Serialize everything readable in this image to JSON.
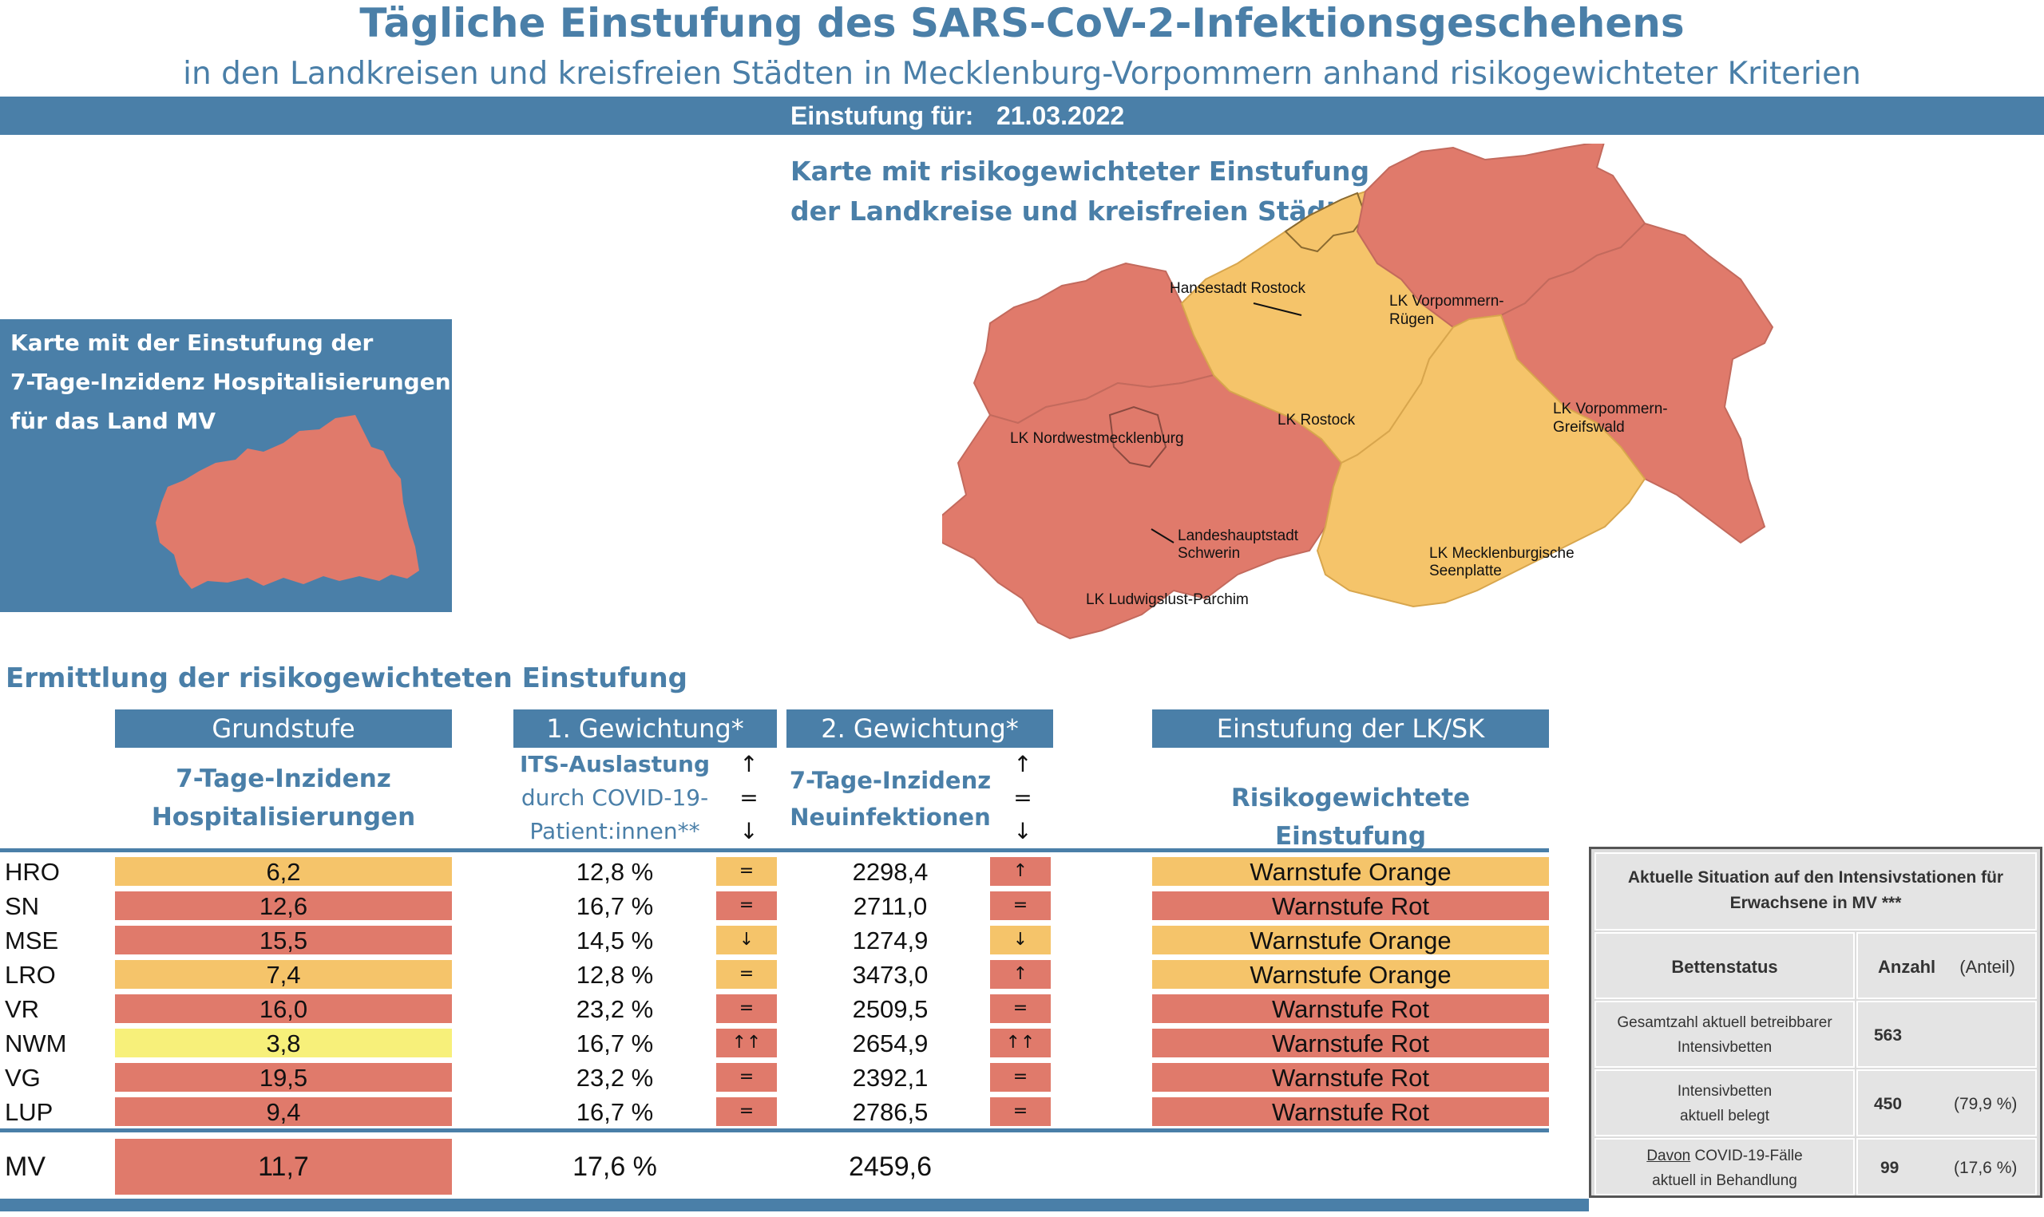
{
  "header": {
    "title": "Tägliche Einstufung des SARS-CoV-2-Infektionsgeschehens",
    "subtitle": "in den Landkreisen und kreisfreien Städten in Mecklenburg-Vorpommern anhand risikogewichteter Kriterien",
    "date_label": "Einstufung für:",
    "date": "21.03.2022"
  },
  "map": {
    "title_line1": "Karte mit risikogewichteter Einstufung",
    "title_line2": "der Landkreise und kreisfreien Städte",
    "labels": {
      "hro": "Hansestadt Rostock",
      "vr_1": "LK Vorpommern-",
      "vr_2": "Rügen",
      "lro": "LK Rostock",
      "vg_1": "LK Vorpommern-",
      "vg_2": "Greifswald",
      "nwm": "LK Nordwestmecklenburg",
      "sn_1": "Landeshauptstadt",
      "sn_2": "Schwerin",
      "mse_1": "LK Mecklenburgische",
      "mse_2": "Seenplatte",
      "lup": "LK Ludwigslust-Parchim"
    },
    "colors": {
      "red": "#e07a6b",
      "orange": "#f5c46a"
    },
    "regions": {
      "NWM": "red",
      "LUP": "red",
      "SN": "red",
      "HRO": "orange",
      "LRO": "orange",
      "MSE": "orange",
      "VR": "red",
      "VG": "red"
    }
  },
  "mv_box": {
    "line1": "Karte mit der Einstufung der",
    "line2": "7-Tage-Inzidenz Hospitalisierungen",
    "line3": "für das Land MV"
  },
  "section_title": "Ermittlung der risikogewichteten Einstufung",
  "table": {
    "headers": {
      "grundstufe": "Grundstufe",
      "gew1": "1. Gewichtung*",
      "gew2": "2. Gewichtung*",
      "einstufung": "Einstufung der LK/SK"
    },
    "sub": {
      "hosp_1": "7-Tage-Inzidenz",
      "hosp_2": "Hospitalisierungen",
      "its_1": "ITS-Auslastung",
      "its_2": "durch COVID-19-",
      "its_3": "Patient:innen**",
      "inz_1": "7-Tage-Inzidenz",
      "inz_2": "Neuinfektionen",
      "risk": "Risikogewichtete Einstufung",
      "arrow_up": "↑",
      "arrow_eq": "=",
      "arrow_down": "↓"
    },
    "rows": [
      {
        "code": "HRO",
        "hosp": "6,2",
        "hosp_color": "orange",
        "its": "12,8 %",
        "its_trend": "=",
        "its_color": "orange",
        "inz": "2298,4",
        "inz_trend": "↑",
        "inz_color": "red",
        "stufe": "Warnstufe Orange",
        "stufe_color": "orange"
      },
      {
        "code": "SN",
        "hosp": "12,6",
        "hosp_color": "red",
        "its": "16,7 %",
        "its_trend": "=",
        "its_color": "red",
        "inz": "2711,0",
        "inz_trend": "=",
        "inz_color": "red",
        "stufe": "Warnstufe Rot",
        "stufe_color": "red"
      },
      {
        "code": "MSE",
        "hosp": "15,5",
        "hosp_color": "red",
        "its": "14,5 %",
        "its_trend": "↓",
        "its_color": "orange",
        "inz": "1274,9",
        "inz_trend": "↓",
        "inz_color": "orange",
        "stufe": "Warnstufe Orange",
        "stufe_color": "orange"
      },
      {
        "code": "LRO",
        "hosp": "7,4",
        "hosp_color": "orange",
        "its": "12,8 %",
        "its_trend": "=",
        "its_color": "orange",
        "inz": "3473,0",
        "inz_trend": "↑",
        "inz_color": "red",
        "stufe": "Warnstufe Orange",
        "stufe_color": "orange"
      },
      {
        "code": "VR",
        "hosp": "16,0",
        "hosp_color": "red",
        "its": "23,2 %",
        "its_trend": "=",
        "its_color": "red",
        "inz": "2509,5",
        "inz_trend": "=",
        "inz_color": "red",
        "stufe": "Warnstufe Rot",
        "stufe_color": "red"
      },
      {
        "code": "NWM",
        "hosp": "3,8",
        "hosp_color": "yellow",
        "its": "16,7 %",
        "its_trend": "↑↑",
        "its_color": "red",
        "inz": "2654,9",
        "inz_trend": "↑↑",
        "inz_color": "red",
        "stufe": "Warnstufe Rot",
        "stufe_color": "red"
      },
      {
        "code": "VG",
        "hosp": "19,5",
        "hosp_color": "red",
        "its": "23,2 %",
        "its_trend": "=",
        "its_color": "red",
        "inz": "2392,1",
        "inz_trend": "=",
        "inz_color": "red",
        "stufe": "Warnstufe Rot",
        "stufe_color": "red"
      },
      {
        "code": "LUP",
        "hosp": "9,4",
        "hosp_color": "red",
        "its": "16,7 %",
        "its_trend": "=",
        "its_color": "red",
        "inz": "2786,5",
        "inz_trend": "=",
        "inz_color": "red",
        "stufe": "Warnstufe Rot",
        "stufe_color": "red"
      }
    ],
    "mv": {
      "code": "MV",
      "hosp": "11,7",
      "its": "17,6 %",
      "inz": "2459,6"
    }
  },
  "icu": {
    "title_1": "Aktuelle Situation auf den Intensivstationen für",
    "title_2": "Erwachsene in MV ***",
    "col_status": "Bettenstatus",
    "col_count": "Anzahl",
    "col_share": "(Anteil)",
    "rows": [
      {
        "label_1": "Gesamtzahl aktuell betreibbarer",
        "label_2": "Intensivbetten",
        "count": "563",
        "share": ""
      },
      {
        "label_1": "Intensivbetten",
        "label_2": "aktuell belegt",
        "count": "450",
        "share": "(79,9 %)"
      },
      {
        "label_1a": "Davon",
        "label_1b": " COVID-19-Fälle",
        "label_2": "aktuell in Behandlung",
        "count": "99",
        "share": "(17,6 %)"
      }
    ]
  }
}
